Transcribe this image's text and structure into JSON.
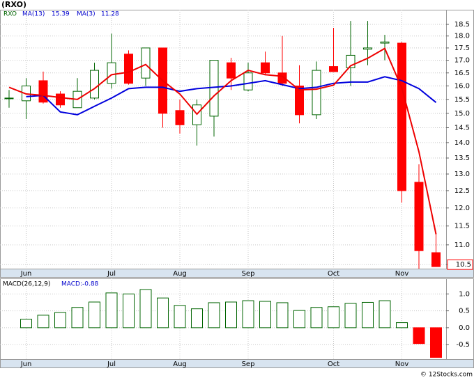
{
  "header": "(RXO)",
  "footer": "© 12Stocks.com",
  "chart_data": [
    {
      "type": "candlestick",
      "ticker": "RXO",
      "categories": [
        null,
        "Jun",
        null,
        null,
        null,
        null,
        "Jul",
        null,
        null,
        null,
        "Aug",
        null,
        null,
        null,
        "Sep",
        null,
        null,
        null,
        null,
        "Oct",
        null,
        null,
        null,
        "Nov",
        null,
        null
      ],
      "open": [
        15.55,
        15.45,
        16.2,
        15.7,
        15.2,
        15.55,
        16.1,
        17.25,
        16.3,
        17.5,
        15.1,
        14.6,
        14.9,
        16.9,
        15.85,
        16.9,
        16.5,
        16.0,
        14.95,
        16.75,
        16.7,
        17.45,
        17.7,
        17.7,
        12.75,
        10.8
      ],
      "high": [
        15.85,
        16.3,
        16.55,
        15.8,
        16.3,
        16.9,
        18.1,
        17.4,
        17.5,
        17.5,
        15.5,
        15.5,
        17.0,
        17.1,
        16.9,
        17.35,
        18.0,
        16.8,
        16.95,
        18.35,
        18.65,
        18.65,
        18.05,
        17.75,
        13.3,
        11.3
      ],
      "low": [
        15.2,
        14.8,
        15.35,
        15.2,
        15.2,
        15.5,
        15.9,
        16.05,
        16.0,
        14.5,
        14.3,
        13.9,
        14.2,
        15.85,
        15.8,
        16.45,
        16.0,
        14.65,
        14.8,
        16.55,
        16.0,
        16.8,
        17.0,
        12.15,
        10.4,
        10.45
      ],
      "close": [
        15.55,
        16.0,
        15.4,
        15.3,
        15.8,
        16.6,
        16.9,
        16.1,
        17.5,
        15.0,
        14.6,
        15.3,
        17.0,
        16.3,
        16.5,
        16.5,
        16.1,
        14.95,
        16.6,
        16.55,
        17.2,
        17.5,
        17.75,
        12.5,
        10.85,
        10.45
      ],
      "up_color": "#006400",
      "down_color": "#ff0000",
      "series": [
        {
          "name": "MA(13)",
          "color": "#0000dd",
          "values": [
            null,
            15.6,
            15.65,
            15.05,
            14.95,
            15.25,
            15.55,
            15.9,
            15.95,
            15.95,
            15.8,
            15.9,
            15.95,
            16.0,
            16.1,
            16.2,
            16.05,
            15.9,
            15.95,
            16.1,
            16.15,
            16.15,
            16.35,
            16.2,
            15.9,
            15.39
          ]
        },
        {
          "name": "MA(3)",
          "color": "#ee0000",
          "values": [
            15.95,
            15.7,
            15.65,
            15.57,
            15.5,
            15.9,
            16.43,
            16.53,
            16.83,
            16.2,
            15.7,
            14.97,
            15.63,
            16.2,
            16.6,
            16.43,
            16.37,
            15.85,
            15.88,
            16.03,
            16.78,
            17.08,
            17.48,
            15.92,
            13.7,
            11.28
          ]
        }
      ],
      "last_price": 10.5,
      "log_scale": true,
      "ylim": [
        10.4,
        19.15
      ],
      "yticks": [
        10.5,
        {
          "value": 11,
          "label": "11.0"
        },
        11.5,
        {
          "value": 12,
          "label": "12.0"
        },
        12.5,
        {
          "value": 13,
          "label": "13.0"
        },
        13.5,
        {
          "value": 14,
          "label": "14.0"
        },
        14.5,
        {
          "value": 15,
          "label": "15.0"
        },
        15.5,
        {
          "value": 16,
          "label": "16.0"
        },
        16.5,
        {
          "value": 17,
          "label": "17.0"
        },
        17.5,
        {
          "value": 18,
          "label": "18.0"
        },
        18.5
      ],
      "grid": true
    },
    {
      "type": "bar",
      "name": "MACD(26,12,9)",
      "value_prefix": "MACD:",
      "categories": [
        null,
        "Jun",
        null,
        null,
        null,
        null,
        "Jul",
        null,
        null,
        null,
        "Aug",
        null,
        null,
        null,
        "Sep",
        null,
        null,
        null,
        null,
        "Oct",
        null,
        null,
        null,
        "Nov",
        null,
        null
      ],
      "values": [
        0.0,
        0.25,
        0.37,
        0.45,
        0.6,
        0.76,
        1.03,
        1.0,
        1.13,
        0.88,
        0.66,
        0.56,
        0.74,
        0.76,
        0.8,
        0.78,
        0.74,
        0.51,
        0.6,
        0.62,
        0.72,
        0.75,
        0.8,
        0.15,
        -0.47,
        -0.88
      ],
      "up_color": "#006400",
      "down_color": "#ff0000",
      "ylim": [
        -0.93,
        1.46
      ],
      "yticks": [
        -0.5,
        {
          "value": 0,
          "label": "0.0"
        },
        0.5,
        {
          "value": 1,
          "label": "1.0"
        }
      ],
      "grid": true
    }
  ]
}
